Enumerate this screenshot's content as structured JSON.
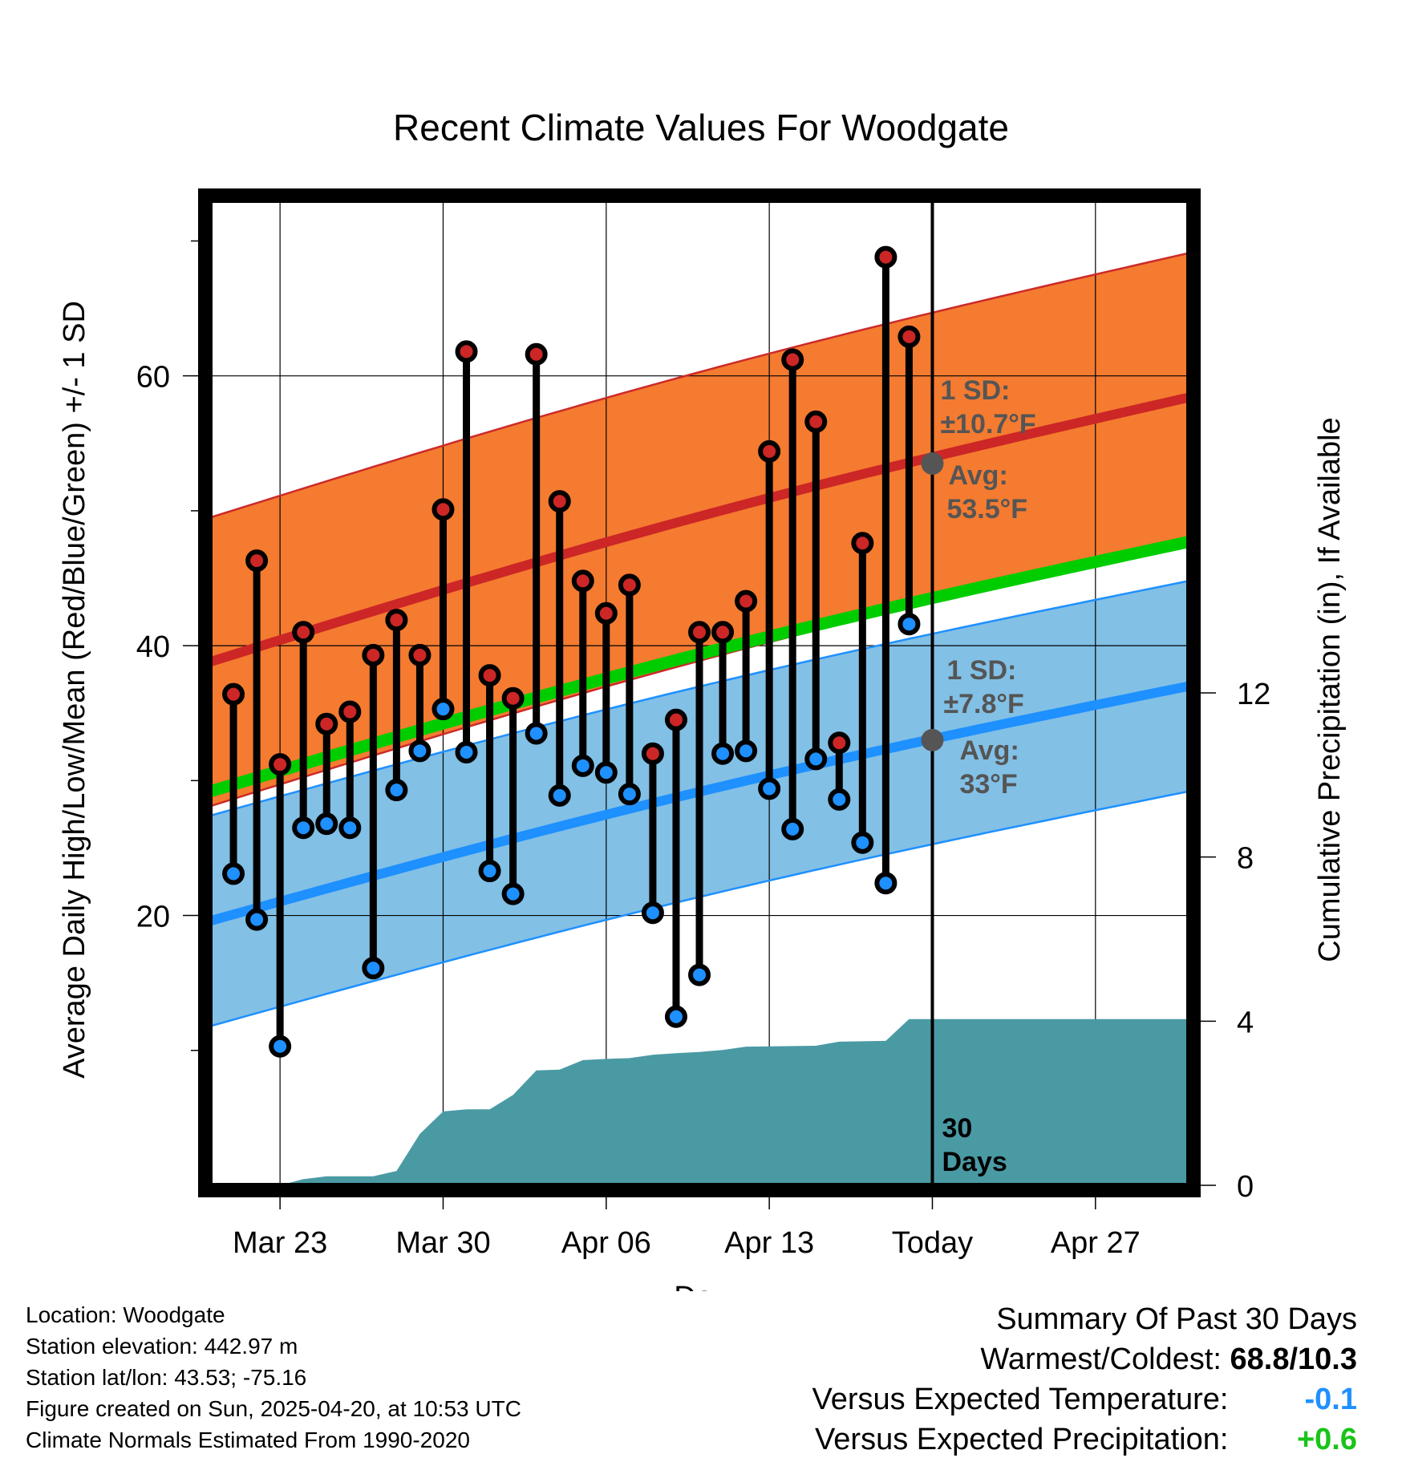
{
  "chart_data": {
    "type": "line",
    "title": "Recent Climate Values For Woodgate",
    "xlabel": "Day",
    "ylabel_left": "Average Daily High/Low/Mean (Red/Blue/Green) +/- 1 SD",
    "ylabel_right": "Cumulative Precipitation (in), If Available",
    "x_range": [
      "2025-03-20",
      "2025-05-01"
    ],
    "ylim_left": [
      0,
      73
    ],
    "ylim_right": [
      0,
      24
    ],
    "x_ticks": [
      {
        "date": "2025-03-23",
        "label": "Mar 23"
      },
      {
        "date": "2025-03-30",
        "label": "Mar 30"
      },
      {
        "date": "2025-04-06",
        "label": "Apr 06"
      },
      {
        "date": "2025-04-13",
        "label": "Apr 13"
      },
      {
        "date": "2025-04-20",
        "label": "Today"
      },
      {
        "date": "2025-04-27",
        "label": "Apr 27"
      }
    ],
    "y_ticks_left": [
      20,
      40,
      60
    ],
    "y_ticks_left_labels": [
      "20",
      "40",
      "60"
    ],
    "y_ticks_right": [
      0,
      4,
      8,
      12
    ],
    "y_ticks_right_labels": [
      "0",
      "4",
      "8",
      "12"
    ],
    "grid": true,
    "dates": [
      "2025-03-21",
      "2025-03-22",
      "2025-03-23",
      "2025-03-24",
      "2025-03-25",
      "2025-03-26",
      "2025-03-27",
      "2025-03-28",
      "2025-03-29",
      "2025-03-30",
      "2025-03-31",
      "2025-04-01",
      "2025-04-02",
      "2025-04-03",
      "2025-04-04",
      "2025-04-05",
      "2025-04-06",
      "2025-04-07",
      "2025-04-08",
      "2025-04-09",
      "2025-04-10",
      "2025-04-11",
      "2025-04-12",
      "2025-04-13",
      "2025-04-14",
      "2025-04-15",
      "2025-04-16",
      "2025-04-17",
      "2025-04-18",
      "2025-04-19"
    ],
    "daily_high": [
      36.4,
      46.3,
      31.2,
      41.0,
      34.2,
      35.1,
      39.3,
      41.9,
      39.3,
      50.1,
      61.8,
      37.8,
      36.1,
      61.6,
      50.7,
      44.8,
      42.4,
      44.5,
      32.0,
      34.5,
      41.0,
      41.0,
      43.3,
      54.4,
      61.2,
      56.6,
      32.8,
      47.6,
      68.8,
      62.9
    ],
    "daily_low": [
      23.1,
      19.7,
      10.3,
      26.5,
      26.8,
      26.5,
      16.1,
      29.3,
      32.2,
      35.3,
      32.1,
      23.3,
      21.6,
      33.5,
      28.9,
      31.1,
      30.6,
      29.0,
      20.2,
      12.5,
      15.6,
      32.0,
      32.2,
      29.4,
      26.4,
      31.6,
      28.6,
      25.4,
      22.4,
      41.6
    ],
    "normal_high": {
      "start": 38.8,
      "end": 58.4
    },
    "normal_low": {
      "start": 19.6,
      "end": 37.0
    },
    "normal_mean": {
      "start": 29.2,
      "end": 47.7
    },
    "sd_high": 10.7,
    "sd_low": 7.8,
    "cumulative_precip": [
      {
        "date": "2025-03-20",
        "value": 0.0
      },
      {
        "date": "2025-03-23",
        "value": 0.0
      },
      {
        "date": "2025-03-24",
        "value": 0.15
      },
      {
        "date": "2025-03-25",
        "value": 0.22
      },
      {
        "date": "2025-03-27",
        "value": 0.22
      },
      {
        "date": "2025-03-28",
        "value": 0.35
      },
      {
        "date": "2025-03-29",
        "value": 1.25
      },
      {
        "date": "2025-03-30",
        "value": 1.8
      },
      {
        "date": "2025-03-31",
        "value": 1.85
      },
      {
        "date": "2025-04-01",
        "value": 1.85
      },
      {
        "date": "2025-04-02",
        "value": 2.2
      },
      {
        "date": "2025-04-03",
        "value": 2.8
      },
      {
        "date": "2025-04-04",
        "value": 2.82
      },
      {
        "date": "2025-04-05",
        "value": 3.05
      },
      {
        "date": "2025-04-06",
        "value": 3.08
      },
      {
        "date": "2025-04-07",
        "value": 3.1
      },
      {
        "date": "2025-04-08",
        "value": 3.18
      },
      {
        "date": "2025-04-09",
        "value": 3.22
      },
      {
        "date": "2025-04-10",
        "value": 3.25
      },
      {
        "date": "2025-04-11",
        "value": 3.3
      },
      {
        "date": "2025-04-12",
        "value": 3.38
      },
      {
        "date": "2025-04-15",
        "value": 3.4
      },
      {
        "date": "2025-04-16",
        "value": 3.5
      },
      {
        "date": "2025-04-18",
        "value": 3.52
      },
      {
        "date": "2025-04-19",
        "value": 4.05
      },
      {
        "date": "2025-05-01",
        "value": 4.05
      }
    ],
    "annotations": {
      "high_sd_label": "1 SD:",
      "high_sd_value": "±10.7°F",
      "high_avg_label": "Avg:",
      "high_avg_value": "53.5°F",
      "high_avg_point": 53.5,
      "low_sd_label": "1 SD:",
      "low_sd_value": "±7.8°F",
      "low_avg_label": "Avg:",
      "low_avg_value": "33°F",
      "low_avg_point": 33.0,
      "today_date": "2025-04-20",
      "days_line1": "30",
      "days_line2": "Days"
    },
    "colors": {
      "high_band": "#f47b30",
      "high_edge": "#cc2a2a",
      "high_line": "#cd2626",
      "low_band": "#82c0e6",
      "low_edge": "#1e90ff",
      "low_line": "#1e90ff",
      "mean_line": "#00cd00",
      "precip": "#4a9aa4",
      "high_dot": "#cd2626",
      "low_dot": "#1e90ff",
      "annotation": "#555555"
    }
  },
  "footer": {
    "location": "Location: Woodgate",
    "elevation": "Station elevation: 442.97 m",
    "latlon": "Station lat/lon: 43.53; -75.16",
    "created": "Figure created on Sun, 2025-04-20, at 10:53 UTC",
    "normals": "Climate Normals Estimated From 1990-2020"
  },
  "summary": {
    "title": "Summary Of Past 30 Days",
    "warmest_label": "Warmest/Coldest:",
    "warmest_value": "68.8/10.3",
    "temp_label": "Versus Expected Temperature:",
    "temp_value": "-0.1",
    "precip_label": "Versus Expected Precipitation:",
    "precip_value": "+0.6"
  }
}
